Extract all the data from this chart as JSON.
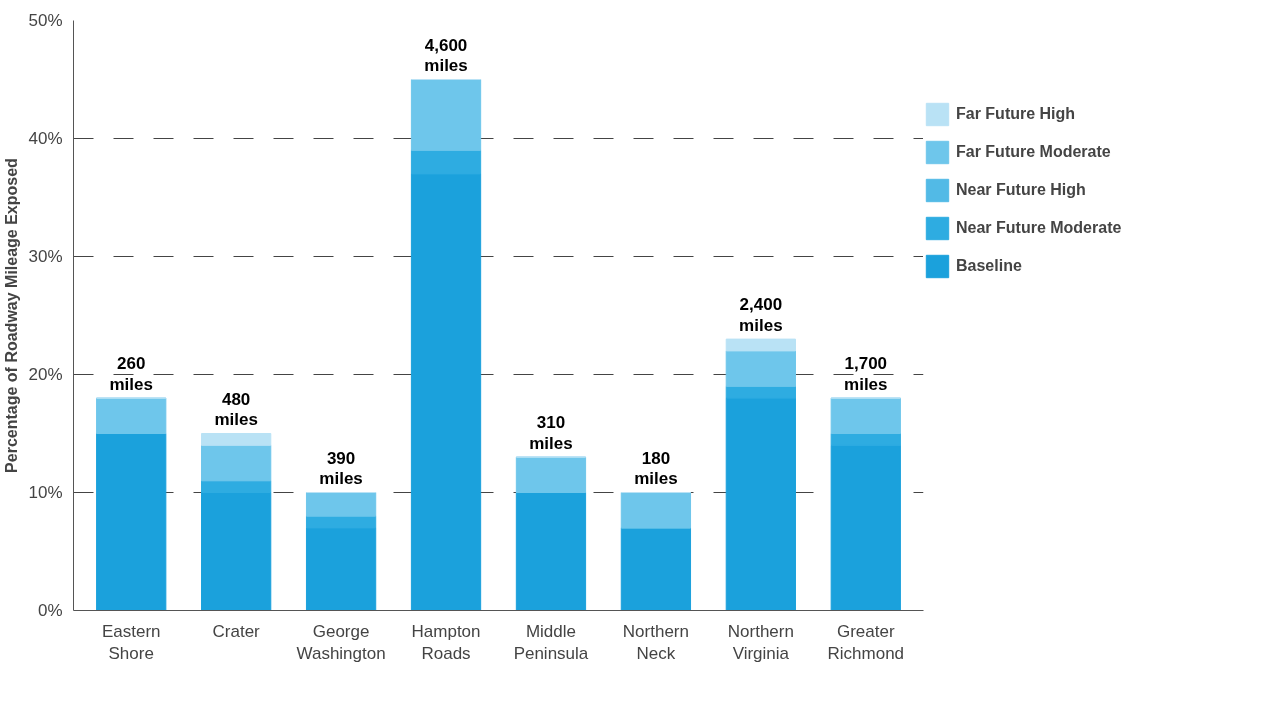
{
  "chart_data": {
    "type": "bar",
    "stacked": true,
    "ylabel": "Percentage of Roadway Mileage Exposed",
    "categories": [
      "Eastern Shore",
      "Crater",
      "George Washington",
      "Hampton Roads",
      "Middle Peninsula",
      "Northern Neck",
      "Northern Virginia",
      "Greater Richmond"
    ],
    "series": [
      {
        "name": "Baseline",
        "color": "#1ba1dc",
        "values": [
          15,
          10,
          7,
          37,
          10,
          7,
          18,
          14
        ]
      },
      {
        "name": "Near Future Moderate",
        "color": "#2eace1",
        "values": [
          0,
          1,
          1,
          2,
          0,
          0,
          1,
          1
        ]
      },
      {
        "name": "Near Future High",
        "color": "#52bae6",
        "values": [
          0,
          0,
          0,
          0,
          0,
          0,
          0,
          0
        ]
      },
      {
        "name": "Far Future Moderate",
        "color": "#6ec6eb",
        "values": [
          3,
          3,
          2,
          6,
          3,
          3,
          3,
          3
        ]
      },
      {
        "name": "Far Future High",
        "color": "#b9e2f5",
        "values": [
          0,
          1,
          0,
          0,
          0,
          0,
          1,
          0
        ]
      }
    ],
    "ylim": [
      0,
      50
    ],
    "yticks": [
      {
        "value": 0,
        "label": "0%"
      },
      {
        "value": 10,
        "label": "10%"
      },
      {
        "value": 20,
        "label": "20%"
      },
      {
        "value": 30,
        "label": "30%"
      },
      {
        "value": 40,
        "label": "40%"
      },
      {
        "value": 50,
        "label": "50%"
      }
    ],
    "grid": "y",
    "legend": "right",
    "annotations": [
      {
        "text": "260\nmiles",
        "x": "Eastern Shore",
        "y": 18
      },
      {
        "text": "480\nmiles",
        "x": "Crater",
        "y": 15
      },
      {
        "text": "390\nmiles",
        "x": "George Washington",
        "y": 10
      },
      {
        "text": "4,600\nmiles",
        "x": "Hampton Roads",
        "y": 45
      },
      {
        "text": "310\nmiles",
        "x": "Middle Peninsula",
        "y": 13
      },
      {
        "text": "180\nmiles",
        "x": "Northern Neck",
        "y": 10
      },
      {
        "text": "2,400\nmiles",
        "x": "Northern Virginia",
        "y": 23
      },
      {
        "text": "1,700\nmiles",
        "x": "Greater Richmond",
        "y": 18
      }
    ]
  }
}
